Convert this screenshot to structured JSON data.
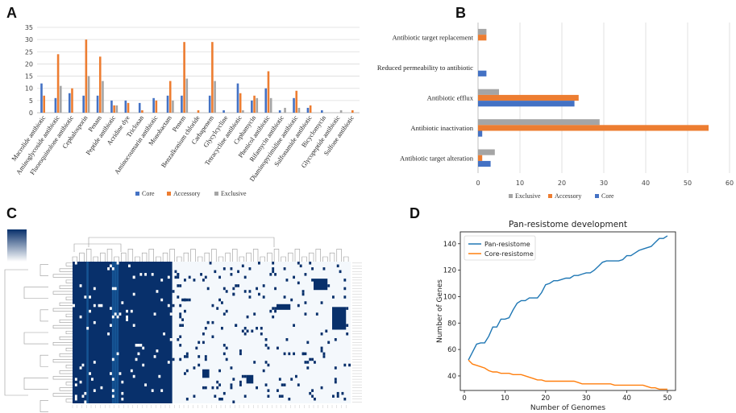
{
  "panels": {
    "a": "A",
    "b": "B",
    "c": "C",
    "d": "D"
  },
  "colors": {
    "core": "#4472C4",
    "accessory": "#ED7D31",
    "exclusive": "#A5A5A5",
    "pan": "#1f77b4",
    "coreLine": "#ff7f0e",
    "heatDark": "#08306b",
    "heatMid": "#2171b5",
    "heatLight": "#f4f8fc"
  },
  "chart_data": [
    {
      "type": "bar",
      "title": "",
      "xlabel": "",
      "ylabel": "",
      "ylim": [
        0,
        35
      ],
      "yticks": [
        0,
        5,
        10,
        15,
        20,
        25,
        30,
        35
      ],
      "categories": [
        "Macrolide antibiotic",
        "Aminoglycoside antibiotic",
        "Fluoroquinolone antibiotic",
        "Cephalosporin",
        "Penam",
        "Peptide antibiotic",
        "Acridine dye",
        "Triclosan",
        "Aminocoumarin antibiotic",
        "Monobactam",
        "Penem",
        "Benzalkonium chloride",
        "Carbapenem",
        "Glycylcycline",
        "Tetracycline antibiotic",
        "Cephamycin",
        "Phenicol antibiotic",
        "Rifamycin antibiotic",
        "Diaminopyrimidine antibiotic",
        "Sulfonamide antibiotic",
        "Bicyclomycin",
        "Glycopeptide antibiotic",
        "Sulfone antibiotic"
      ],
      "series": [
        {
          "name": "Core",
          "values": [
            12,
            6,
            8,
            7,
            7,
            5,
            5,
            4,
            6,
            7,
            7,
            0,
            7,
            1,
            12,
            5,
            10,
            1,
            6,
            2,
            1,
            0,
            0
          ]
        },
        {
          "name": "Accessory",
          "values": [
            7,
            24,
            10,
            30,
            23,
            3,
            4,
            1,
            5,
            13,
            29,
            1,
            29,
            0,
            8,
            7,
            17,
            0,
            9,
            3,
            0,
            0,
            1
          ]
        },
        {
          "name": "Exclusive",
          "values": [
            0,
            11,
            0,
            15,
            13,
            3,
            0,
            0,
            0,
            5,
            14,
            0,
            13,
            0,
            1,
            6,
            6,
            2,
            2,
            0,
            0,
            1,
            0
          ]
        }
      ],
      "legend": [
        "Core",
        "Accessory",
        "Exclusive"
      ],
      "grid": true
    },
    {
      "type": "bar",
      "orientation": "horizontal",
      "title": "",
      "xlim": [
        0,
        60
      ],
      "xticks": [
        0,
        10,
        20,
        30,
        40,
        50,
        60
      ],
      "categories": [
        "Antibiotic target replacement",
        "Reduced permeability to antibiotic",
        "Antibiotic efflux",
        "Antibiotic inactivation",
        "Antibiotic target alteration"
      ],
      "series": [
        {
          "name": "Exclusive",
          "values": [
            2,
            0,
            5,
            29,
            4
          ]
        },
        {
          "name": "Accessory",
          "values": [
            2,
            0,
            24,
            55,
            1
          ]
        },
        {
          "name": "Core",
          "values": [
            0,
            2,
            23,
            1,
            3
          ]
        }
      ],
      "legend": [
        "Exclusive",
        "Accessory",
        "Core"
      ],
      "grid": true
    },
    {
      "type": "heatmap",
      "title": "",
      "description_rows": 50,
      "legend": []
    },
    {
      "type": "line",
      "title": "Pan-resistome development",
      "xlabel": "Number of Genomes",
      "ylabel": "Number of Genes",
      "xlim": [
        -1,
        52
      ],
      "ylim": [
        29,
        149
      ],
      "xticks": [
        0,
        10,
        20,
        30,
        40,
        50
      ],
      "yticks": [
        40,
        60,
        80,
        100,
        120,
        140
      ],
      "x": [
        1,
        2,
        3,
        4,
        5,
        6,
        7,
        8,
        9,
        10,
        11,
        12,
        13,
        14,
        15,
        16,
        17,
        18,
        19,
        20,
        21,
        22,
        23,
        24,
        25,
        26,
        27,
        28,
        29,
        30,
        31,
        32,
        33,
        34,
        35,
        36,
        37,
        38,
        39,
        40,
        41,
        42,
        43,
        44,
        45,
        46,
        47,
        48,
        49,
        50
      ],
      "series": [
        {
          "name": "Pan-resistome",
          "values": [
            52,
            58,
            64,
            65,
            65,
            70,
            77,
            77,
            83,
            83,
            84,
            90,
            95,
            97,
            97,
            99,
            99,
            99,
            103,
            109,
            110,
            112,
            112,
            113,
            114,
            114,
            116,
            116,
            117,
            118,
            118,
            120,
            123,
            126,
            127,
            127,
            127,
            127,
            128,
            131,
            131,
            133,
            135,
            136,
            137,
            138,
            141,
            144,
            144,
            146
          ]
        },
        {
          "name": "Core-resistome",
          "values": [
            52,
            49,
            48,
            47,
            46,
            44,
            43,
            43,
            42,
            42,
            42,
            41,
            41,
            41,
            40,
            39,
            38,
            37,
            37,
            36,
            36,
            36,
            36,
            36,
            36,
            36,
            36,
            35,
            34,
            34,
            34,
            34,
            34,
            34,
            34,
            34,
            33,
            33,
            33,
            33,
            33,
            33,
            33,
            33,
            32,
            31,
            31,
            30,
            30,
            30
          ]
        }
      ],
      "legend": [
        "Pan-resistome",
        "Core-resistome"
      ],
      "legend_position": "top-left"
    }
  ]
}
